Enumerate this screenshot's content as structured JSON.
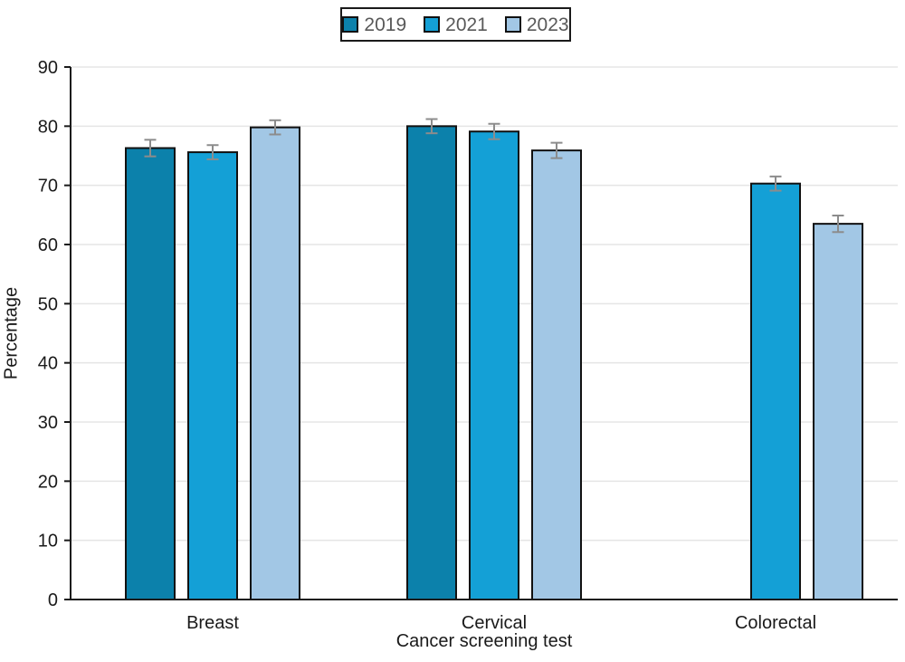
{
  "chart_data": {
    "type": "bar",
    "title": "",
    "xlabel": "Cancer screening test",
    "ylabel": "Percentage",
    "categories": [
      "Breast",
      "Cervical",
      "Colorectal"
    ],
    "series": [
      {
        "name": "2019",
        "color": "#0c81ab",
        "values": [
          76.3,
          80.0,
          null
        ],
        "errors": [
          1.4,
          1.2,
          null
        ]
      },
      {
        "name": "2021",
        "color": "#14a0d6",
        "values": [
          75.6,
          79.1,
          70.3
        ],
        "errors": [
          1.2,
          1.3,
          1.2
        ]
      },
      {
        "name": "2023",
        "color": "#a2c7e5",
        "values": [
          79.8,
          75.9,
          63.5
        ],
        "errors": [
          1.2,
          1.3,
          1.4
        ]
      }
    ],
    "ylim": [
      0,
      90
    ],
    "ytick_step": 10,
    "yticks": [
      0,
      10,
      20,
      30,
      40,
      50,
      60,
      70,
      80,
      90
    ],
    "grid": "horizontal",
    "legend_position": "top-center",
    "error_bars": true,
    "colors": {
      "axis": "#1a1a1a",
      "grid": "#e5e5e5",
      "error": "#8c8c8c",
      "legend_text": "#595959",
      "bar_border": "#111111"
    }
  }
}
